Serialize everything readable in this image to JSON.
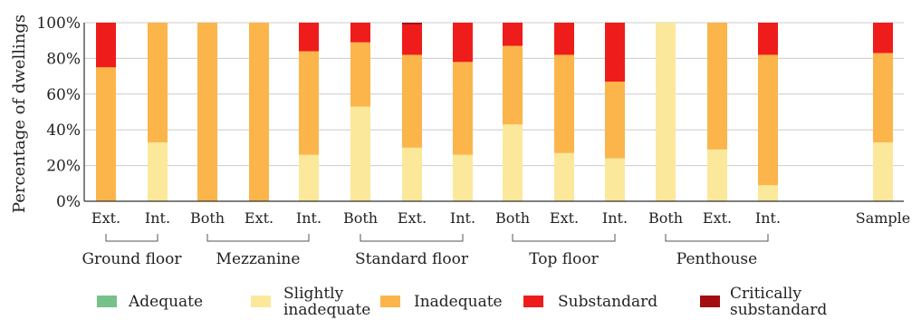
{
  "chart_data": {
    "type": "bar",
    "stacked": true,
    "ylabel": "Percentage of dwellings",
    "ylim": [
      0,
      100
    ],
    "yticks": [
      "0%",
      "20%",
      "40%",
      "60%",
      "80%",
      "100%"
    ],
    "grid": "horizontal",
    "legend_position": "bottom",
    "categories": [
      "Ext.",
      "Int.",
      "Both",
      "Ext.",
      "Int.",
      "Both",
      "Ext.",
      "Int.",
      "Both",
      "Ext.",
      "Int.",
      "Both",
      "Ext.",
      "Int.",
      "Sample"
    ],
    "groups": [
      {
        "label": "Ground floor",
        "categories": [
          0,
          1
        ]
      },
      {
        "label": "Mezzanine",
        "categories": [
          2,
          3,
          4
        ]
      },
      {
        "label": "Standard floor",
        "categories": [
          5,
          6,
          7
        ]
      },
      {
        "label": "Top floor",
        "categories": [
          8,
          9,
          10
        ]
      },
      {
        "label": "Penthouse",
        "categories": [
          11,
          12,
          13
        ]
      }
    ],
    "series": [
      {
        "name": "Adequate",
        "color": "#77c18a",
        "values": [
          0,
          0,
          0,
          0,
          0,
          0,
          0,
          0,
          0,
          0,
          0,
          0,
          0,
          0,
          0
        ]
      },
      {
        "name": "Slightly inadequate",
        "color": "#fbe89b",
        "values": [
          0,
          33,
          0,
          0,
          26,
          53,
          30,
          26,
          43,
          27,
          24,
          100,
          29,
          9,
          33
        ]
      },
      {
        "name": "Inadequate",
        "color": "#fbb54a",
        "values": [
          75,
          67,
          100,
          100,
          58,
          36,
          52,
          52,
          44,
          55,
          43,
          0,
          71,
          73,
          50
        ]
      },
      {
        "name": "Substandard",
        "color": "#ef1c1c",
        "values": [
          25,
          0,
          0,
          0,
          16,
          11,
          17,
          22,
          13,
          18,
          33,
          0,
          0,
          18,
          17
        ]
      },
      {
        "name": "Critically substandard",
        "color": "#a30f0f",
        "values": [
          0,
          0,
          0,
          0,
          0,
          0,
          1,
          0,
          0,
          0,
          0,
          0,
          0,
          0,
          0
        ]
      }
    ]
  }
}
